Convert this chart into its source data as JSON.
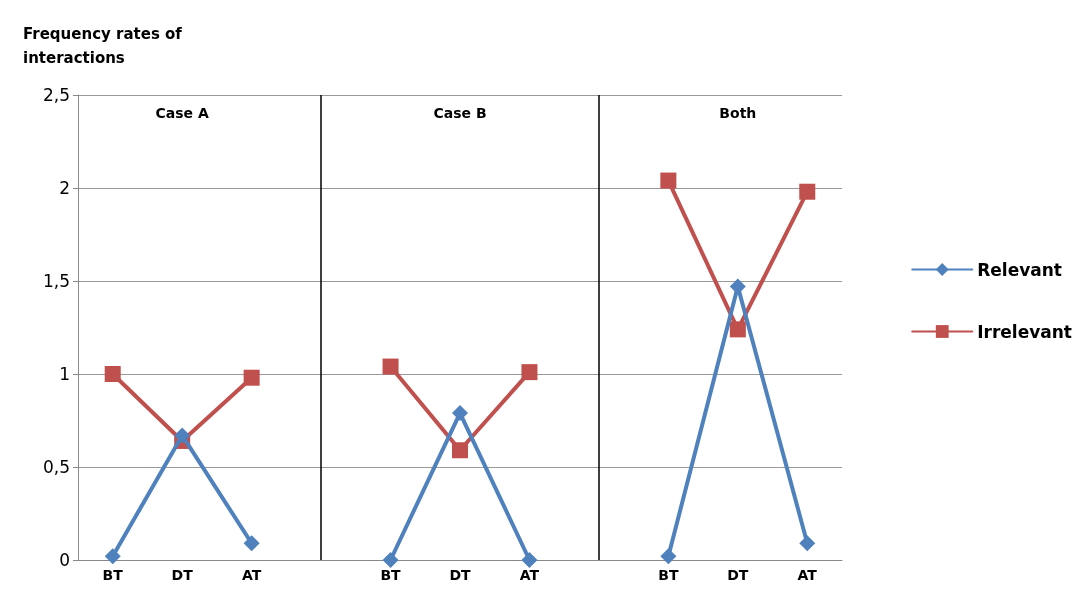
{
  "chart_data": {
    "type": "line",
    "ylabel": "Frequency rates of interactions",
    "categories": [
      "BT",
      "DT",
      "AT",
      null,
      "BT",
      "DT",
      "AT",
      null,
      "BT",
      "DT",
      "AT"
    ],
    "annotations": [
      "Case A",
      "Case B",
      "Both"
    ],
    "series": [
      {
        "name": "Relevant",
        "color": "#4f81bd",
        "marker": "diamond",
        "values": [
          0.02,
          0.67,
          0.09,
          null,
          0,
          0.79,
          0,
          null,
          0.02,
          1.47,
          0.09
        ]
      },
      {
        "name": "Irrelevant",
        "color": "#c0504d",
        "marker": "square",
        "values": [
          1.0,
          0.64,
          0.98,
          null,
          1.04,
          0.59,
          1.01,
          null,
          2.04,
          1.24,
          1.98
        ]
      }
    ],
    "ylim": [
      0,
      2.5
    ],
    "yticks": [
      0,
      {
        "value": 0.5,
        "label": "0,5"
      },
      1,
      {
        "value": 1.5,
        "label": "1,5"
      },
      2,
      {
        "value": 2.5,
        "label": "2,5"
      }
    ],
    "grid": true,
    "legend": "right",
    "line_style": "solid"
  }
}
